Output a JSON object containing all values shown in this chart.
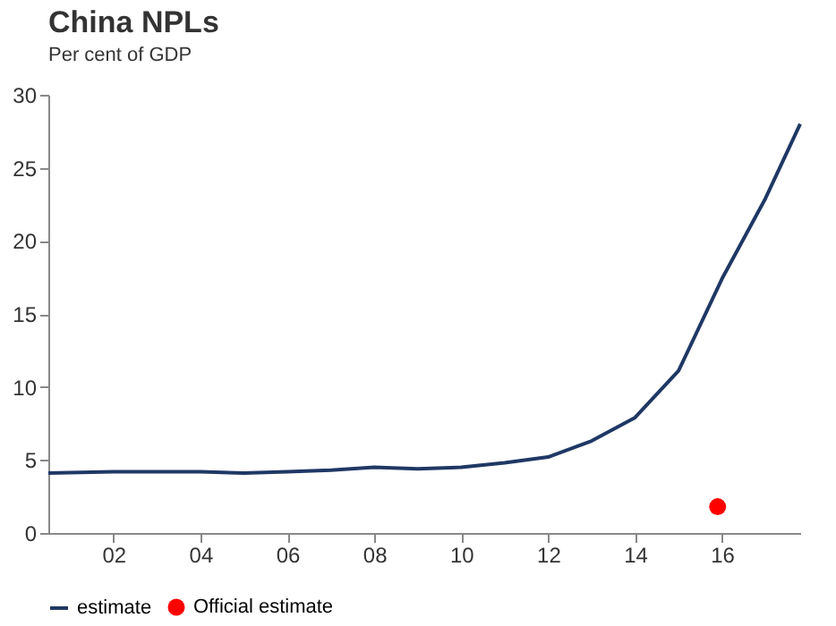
{
  "chart_data": {
    "type": "line",
    "title": "China NPLs",
    "subtitle": "Per cent of GDP",
    "xlim": [
      2000.5,
      2017.8
    ],
    "xticks": [
      {
        "value": 2002,
        "label": "02"
      },
      {
        "value": 2004,
        "label": "04"
      },
      {
        "value": 2006,
        "label": "06"
      },
      {
        "value": 2008,
        "label": "08"
      },
      {
        "value": 2010,
        "label": "10"
      },
      {
        "value": 2012,
        "label": "12"
      },
      {
        "value": 2014,
        "label": "14"
      },
      {
        "value": 2016,
        "label": "16"
      }
    ],
    "ylim": [
      0,
      30
    ],
    "yticks": [
      0,
      5,
      10,
      15,
      20,
      25,
      30
    ],
    "grid": false,
    "legend": "bottom",
    "series": [
      {
        "name": "estimate",
        "color": "#1f3864",
        "marker": "none",
        "x": [
          2000.5,
          2002,
          2003,
          2004,
          2005,
          2006,
          2007,
          2008,
          2009,
          2010,
          2011,
          2012,
          2013,
          2014,
          2015,
          2016,
          2017,
          2017.8
        ],
        "values": [
          4.1,
          4.2,
          4.2,
          4.2,
          4.1,
          4.2,
          4.3,
          4.5,
          4.4,
          4.5,
          4.8,
          5.2,
          6.3,
          7.9,
          11.1,
          17.4,
          22.9,
          28
        ]
      },
      {
        "name": "Official estimate",
        "type": "scatter",
        "color": "#ff0000",
        "marker": "circle",
        "x": [
          2015.9
        ],
        "values": [
          1.8
        ]
      }
    ]
  }
}
